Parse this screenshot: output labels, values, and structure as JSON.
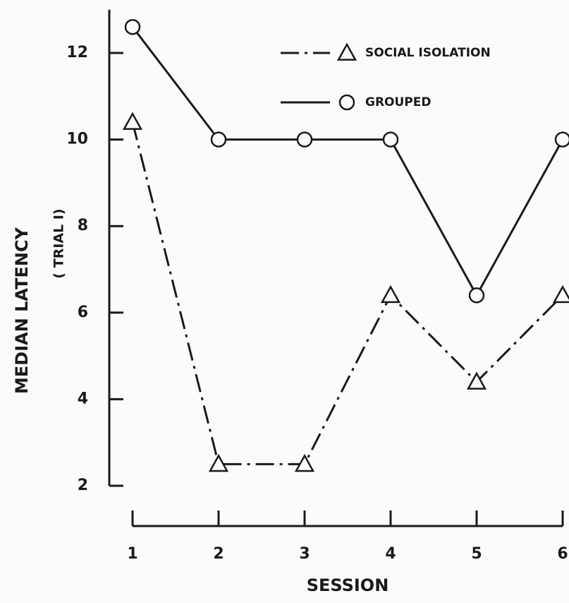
{
  "chart_data": {
    "type": "line",
    "ylabel": "MEDIAN LATENCY",
    "ylabel_sub": "( TRIAL I)",
    "xlabel": "SESSION",
    "x": [
      1,
      2,
      3,
      4,
      5,
      6
    ],
    "xlim": [
      1,
      6
    ],
    "xticks": [
      1,
      2,
      3,
      4,
      5,
      6
    ],
    "ylim": [
      2,
      13
    ],
    "yticks": [
      2,
      4,
      6,
      8,
      10,
      12
    ],
    "legend": "top-right",
    "series": [
      {
        "name": "SOCIAL ISOLATION",
        "color": "#1a1a1a",
        "dash": "dashdot",
        "marker": "triangle",
        "values": [
          10.4,
          2.5,
          2.5,
          6.4,
          4.4,
          6.4
        ]
      },
      {
        "name": "GROUPED",
        "color": "#1a1a1a",
        "dash": "solid",
        "marker": "circle",
        "values": [
          12.6,
          10,
          10,
          10,
          6.4,
          10
        ]
      }
    ]
  }
}
